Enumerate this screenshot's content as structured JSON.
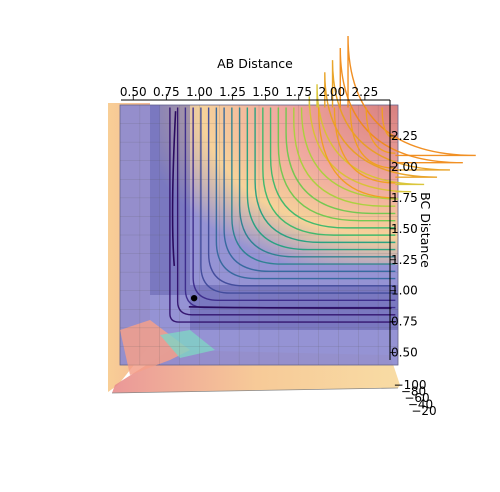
{
  "chart_data": {
    "type": "surface3d-contour",
    "title": "",
    "xlabel": "AB Distance",
    "ylabel": "BC Distance",
    "zlabel": "",
    "x_ticks": [
      "0.50",
      "0.75",
      "1.00",
      "1.25",
      "1.50",
      "1.75",
      "2.00",
      "2.25"
    ],
    "y_ticks": [
      "0.50",
      "0.75",
      "1.00",
      "1.25",
      "1.50",
      "1.75",
      "2.00",
      "2.25"
    ],
    "z_ticks": [
      "−100",
      "−80",
      "−60",
      "−40",
      "−20"
    ],
    "x_range": [
      0.4,
      2.5
    ],
    "y_range": [
      0.4,
      2.5
    ],
    "marked_point": {
      "x": 0.96,
      "y": 0.94
    },
    "colormap": "viridis",
    "surface_colors": {
      "low": "#7a78c8",
      "mid": "#f5d38a",
      "high": "#e28a8a"
    },
    "grid": true,
    "legend": "none"
  }
}
